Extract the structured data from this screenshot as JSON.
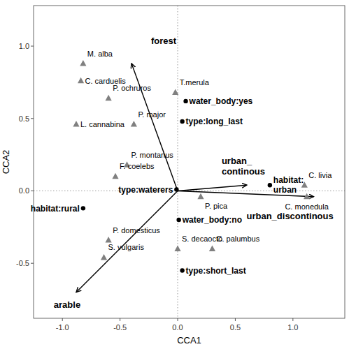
{
  "chart_data": {
    "type": "biplot",
    "xlabel": "CCA1",
    "ylabel": "CCA2",
    "xlim": [
      -1.25,
      1.45
    ],
    "ylim": [
      -0.88,
      1.28
    ],
    "xticks": [
      {
        "value": -1.0,
        "label": "-1.0"
      },
      -0.5,
      {
        "value": 0.0,
        "label": "0.0"
      },
      0.5,
      {
        "value": 1.0,
        "label": "1.0"
      }
    ],
    "yticks": [
      -0.5,
      {
        "value": 0.0,
        "label": "0.0"
      },
      0.5,
      {
        "value": 1.0,
        "label": "1.0"
      }
    ],
    "grid": false,
    "series": [
      {
        "type": "arrow",
        "color": "#000000",
        "origin": [
          0.0,
          0.0
        ],
        "labels": [
          "forest",
          "arable",
          "urban_\ncontinous",
          "urban_discontinous"
        ],
        "x": [
          -0.4,
          -0.88,
          0.6,
          1.18
        ],
        "y": [
          0.88,
          -0.7,
          0.04,
          -0.04
        ]
      },
      {
        "type": "scatter",
        "marker": "circle",
        "color": "#000000",
        "labels": [
          "water_body:yes",
          "type:long_last",
          "type:waterers",
          "habitat:rural",
          "water_body:no",
          "type:short_last",
          "habitat:\nurban"
        ],
        "x": [
          0.07,
          0.04,
          -0.01,
          -0.82,
          0.01,
          0.04,
          0.8
        ],
        "y": [
          0.62,
          0.48,
          0.01,
          -0.12,
          -0.2,
          -0.55,
          0.04
        ]
      },
      {
        "type": "scatter",
        "marker": "triangle",
        "color": "#808080",
        "labels": [
          "M. alba",
          "C. carduelis",
          "P. ochruros",
          "L. cannabina",
          "P. major",
          "P. montanus",
          "F. coelebs",
          "T.merula",
          "P. pica",
          "P. domesticus",
          "S. vulgaris",
          "S. decaocto",
          "C. palumbus",
          "C. livia",
          "C. monedula"
        ],
        "x": [
          -0.82,
          -0.84,
          -0.6,
          -0.88,
          -0.38,
          -0.44,
          -0.54,
          -0.02,
          0.2,
          -0.6,
          -0.64,
          0.0,
          0.3,
          1.1,
          1.12
        ],
        "y": [
          0.88,
          0.76,
          0.64,
          0.46,
          0.46,
          0.18,
          0.1,
          0.68,
          -0.04,
          -0.34,
          -0.46,
          -0.4,
          -0.4,
          0.04,
          -0.04
        ]
      }
    ]
  }
}
